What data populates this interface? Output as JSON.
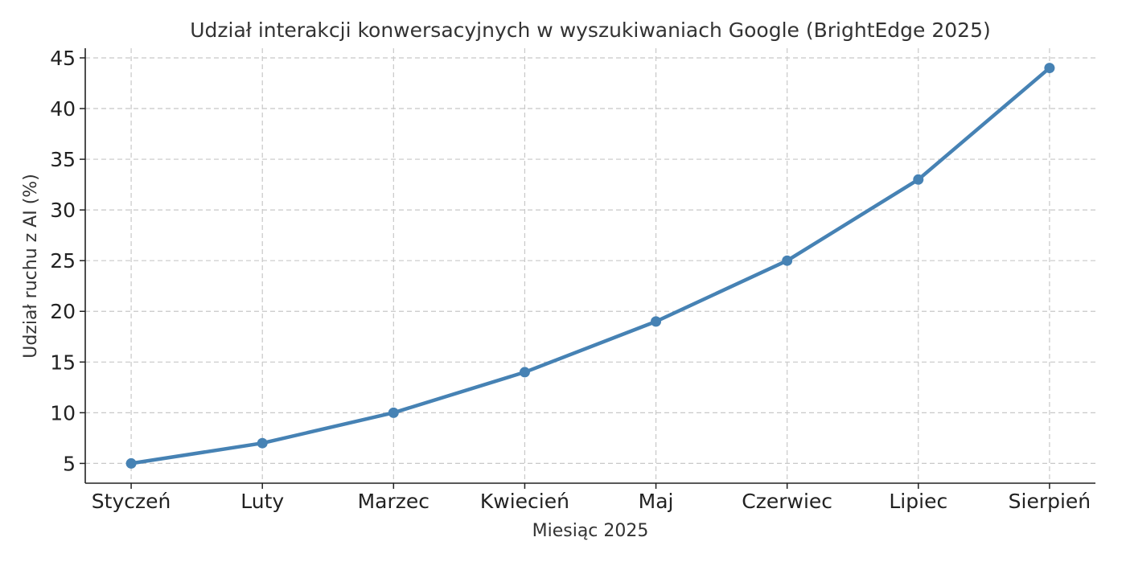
{
  "chart_data": {
    "type": "line",
    "title": "Udział interakcji konwersacyjnych w wyszukiwaniach Google (BrightEdge 2025)",
    "xlabel": "Miesiąc 2025",
    "ylabel": "Udział ruchu z AI (%)",
    "categories": [
      "Styczeń",
      "Luty",
      "Marzec",
      "Kwiecień",
      "Maj",
      "Czerwiec",
      "Lipiec",
      "Sierpień"
    ],
    "values": [
      5,
      7,
      10,
      14,
      19,
      25,
      33,
      44
    ],
    "ylim": [
      3.05,
      45.95
    ],
    "yticks": [
      5,
      10,
      15,
      20,
      25,
      30,
      35,
      40,
      45
    ],
    "grid": true,
    "marker": "circle",
    "color": "#4682b4"
  }
}
